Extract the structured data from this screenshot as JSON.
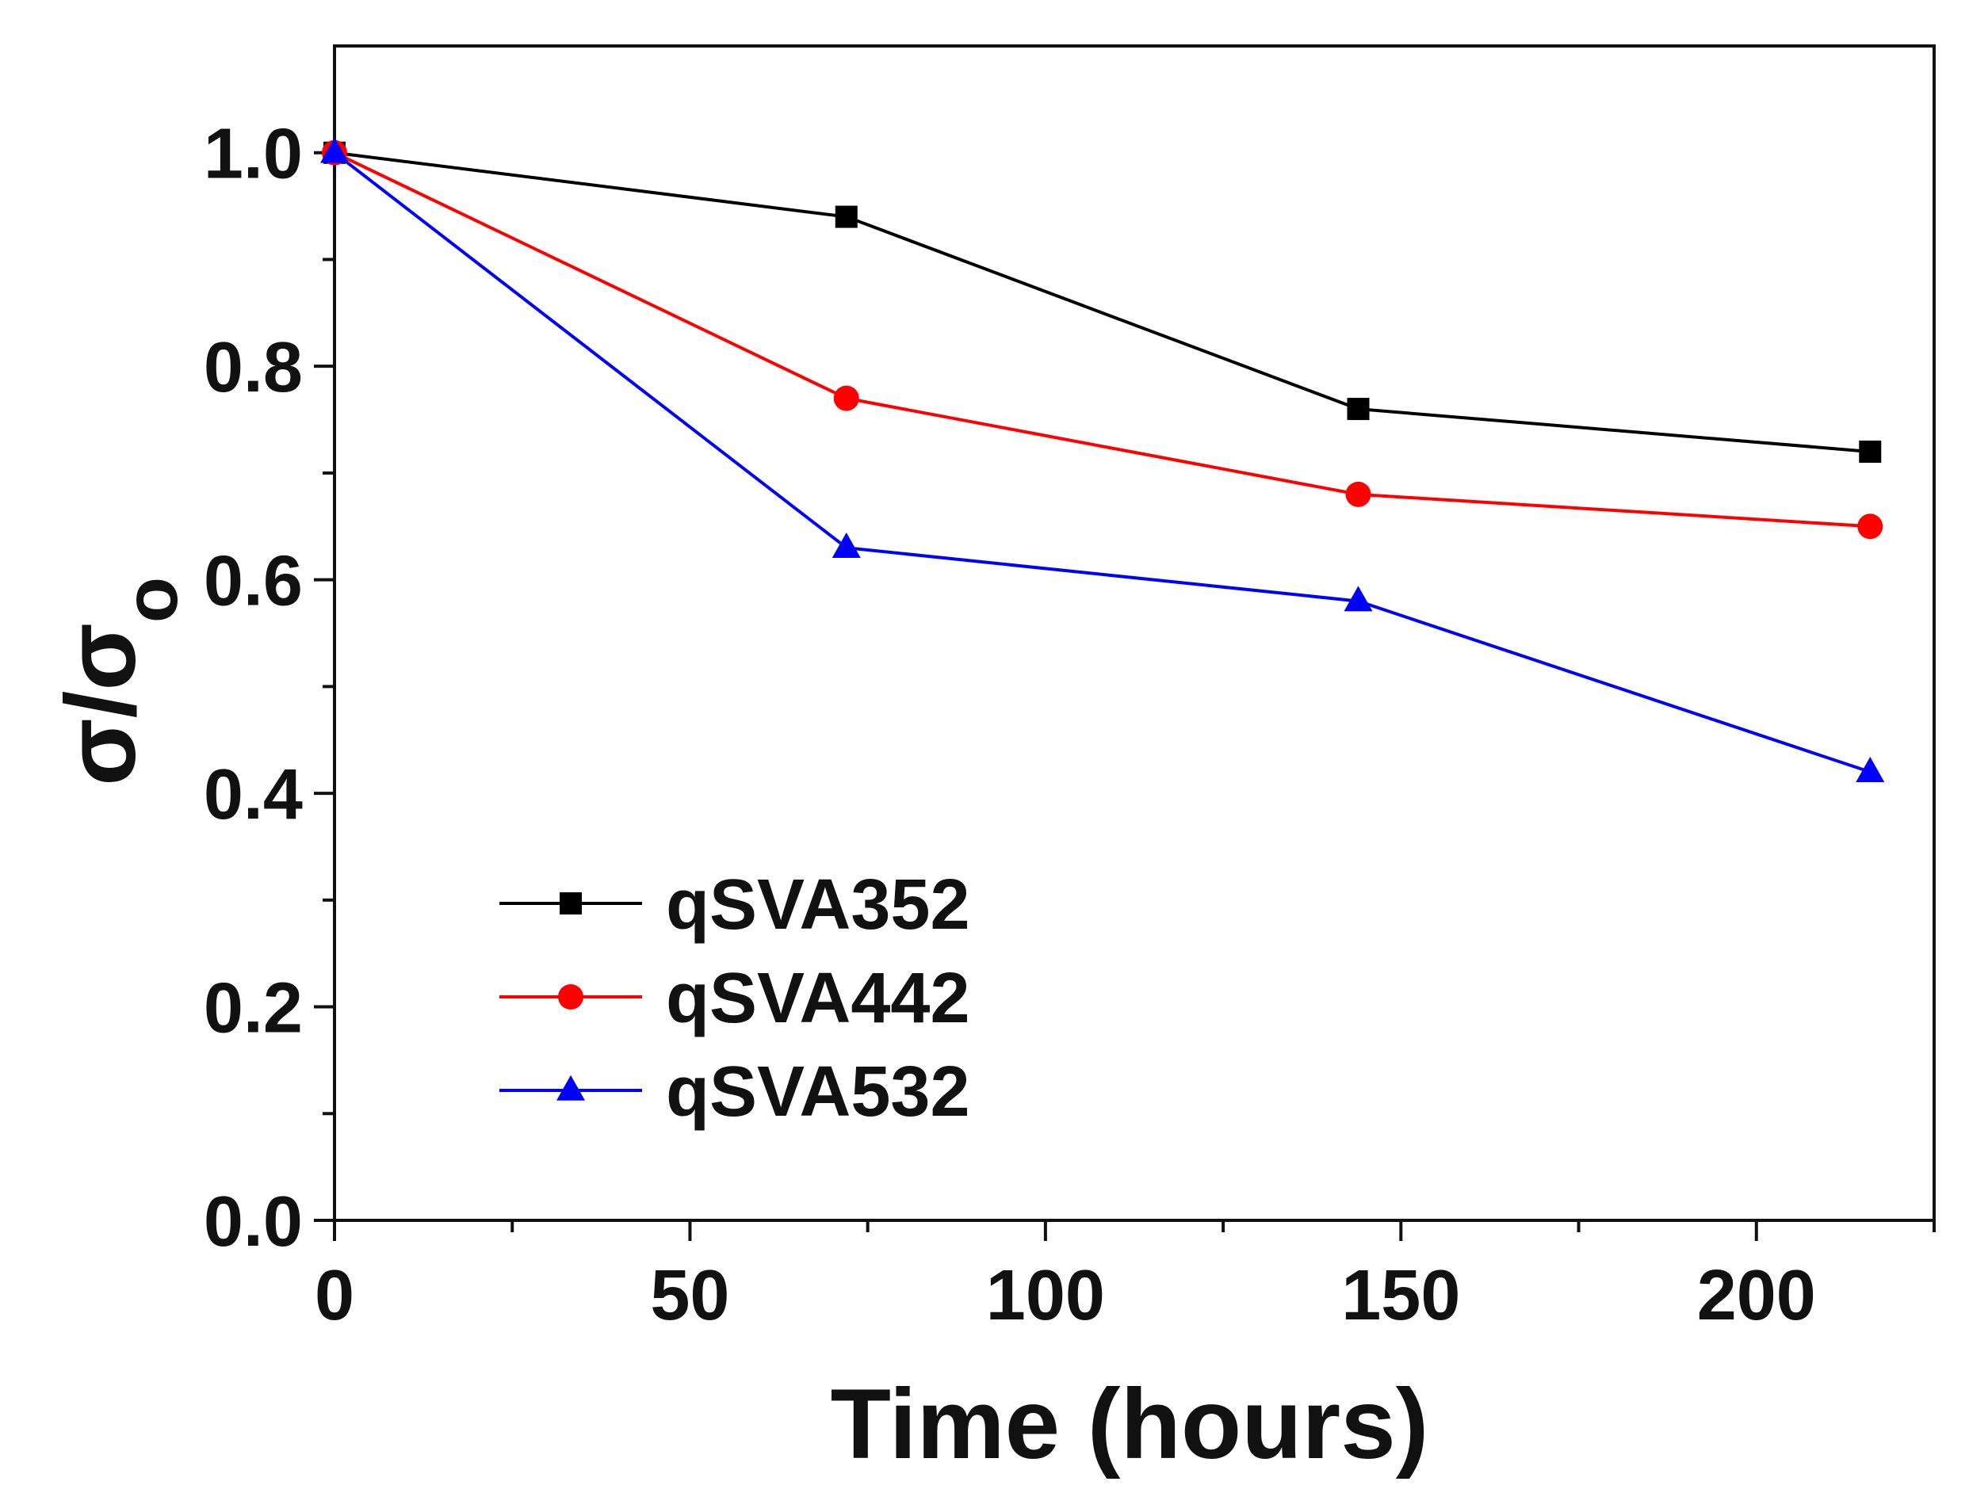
{
  "chart_data": {
    "type": "line",
    "title": "",
    "xlabel": "Time (hours)",
    "ylabel": {
      "base": "σ/σ",
      "subscript": "o"
    },
    "xlim": [
      0,
      225
    ],
    "ylim": [
      0.0,
      1.1
    ],
    "x_ticks": [
      0,
      50,
      100,
      150,
      200
    ],
    "x_tick_labels": [
      "0",
      "50",
      "100",
      "150",
      "200"
    ],
    "x_minor_ticks": [
      25,
      75,
      125,
      175,
      225
    ],
    "y_ticks": [
      0.0,
      0.2,
      0.4,
      0.6,
      0.8,
      1.0
    ],
    "y_tick_labels": [
      "0.0",
      "0.2",
      "0.4",
      "0.6",
      "0.8",
      "1.0"
    ],
    "y_minor_ticks": [
      0.1,
      0.3,
      0.5,
      0.7,
      0.9
    ],
    "grid": false,
    "legend_position": "lower-left",
    "x": [
      0,
      72,
      144,
      216
    ],
    "series": [
      {
        "name": "qSVA352",
        "values": [
          1.0,
          0.94,
          0.76,
          0.72
        ],
        "color": "#000000",
        "marker": "square"
      },
      {
        "name": "qSVA442",
        "values": [
          1.0,
          0.77,
          0.68,
          0.65
        ],
        "color": "#ff0000",
        "marker": "circle"
      },
      {
        "name": "qSVA532",
        "values": [
          1.0,
          0.63,
          0.58,
          0.42
        ],
        "color": "#0000ff",
        "marker": "triangle"
      }
    ]
  }
}
